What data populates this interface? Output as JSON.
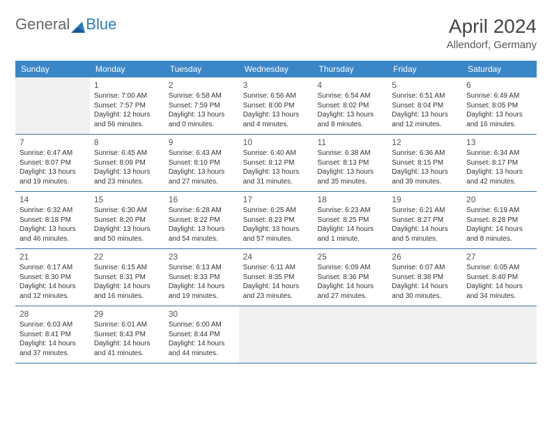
{
  "logo": {
    "text1": "General",
    "text2": "Blue"
  },
  "title": "April 2024",
  "location": "Allendorf, Germany",
  "colors": {
    "header_bg": "#3b86c7",
    "header_text": "#ffffff",
    "cell_border": "#3b6fa0",
    "empty_bg": "#f1f1f1",
    "logo_blue": "#2b7ac0"
  },
  "daynames": [
    "Sunday",
    "Monday",
    "Tuesday",
    "Wednesday",
    "Thursday",
    "Friday",
    "Saturday"
  ],
  "weeks": [
    [
      {
        "empty": true
      },
      {
        "num": "1",
        "sunrise": "7:00 AM",
        "sunset": "7:57 PM",
        "daylight": "12 hours and 56 minutes."
      },
      {
        "num": "2",
        "sunrise": "6:58 AM",
        "sunset": "7:59 PM",
        "daylight": "13 hours and 0 minutes."
      },
      {
        "num": "3",
        "sunrise": "6:56 AM",
        "sunset": "8:00 PM",
        "daylight": "13 hours and 4 minutes."
      },
      {
        "num": "4",
        "sunrise": "6:54 AM",
        "sunset": "8:02 PM",
        "daylight": "13 hours and 8 minutes."
      },
      {
        "num": "5",
        "sunrise": "6:51 AM",
        "sunset": "8:04 PM",
        "daylight": "13 hours and 12 minutes."
      },
      {
        "num": "6",
        "sunrise": "6:49 AM",
        "sunset": "8:05 PM",
        "daylight": "13 hours and 16 minutes."
      }
    ],
    [
      {
        "num": "7",
        "sunrise": "6:47 AM",
        "sunset": "8:07 PM",
        "daylight": "13 hours and 19 minutes."
      },
      {
        "num": "8",
        "sunrise": "6:45 AM",
        "sunset": "8:09 PM",
        "daylight": "13 hours and 23 minutes."
      },
      {
        "num": "9",
        "sunrise": "6:43 AM",
        "sunset": "8:10 PM",
        "daylight": "13 hours and 27 minutes."
      },
      {
        "num": "10",
        "sunrise": "6:40 AM",
        "sunset": "8:12 PM",
        "daylight": "13 hours and 31 minutes."
      },
      {
        "num": "11",
        "sunrise": "6:38 AM",
        "sunset": "8:13 PM",
        "daylight": "13 hours and 35 minutes."
      },
      {
        "num": "12",
        "sunrise": "6:36 AM",
        "sunset": "8:15 PM",
        "daylight": "13 hours and 39 minutes."
      },
      {
        "num": "13",
        "sunrise": "6:34 AM",
        "sunset": "8:17 PM",
        "daylight": "13 hours and 42 minutes."
      }
    ],
    [
      {
        "num": "14",
        "sunrise": "6:32 AM",
        "sunset": "8:18 PM",
        "daylight": "13 hours and 46 minutes."
      },
      {
        "num": "15",
        "sunrise": "6:30 AM",
        "sunset": "8:20 PM",
        "daylight": "13 hours and 50 minutes."
      },
      {
        "num": "16",
        "sunrise": "6:28 AM",
        "sunset": "8:22 PM",
        "daylight": "13 hours and 54 minutes."
      },
      {
        "num": "17",
        "sunrise": "6:25 AM",
        "sunset": "8:23 PM",
        "daylight": "13 hours and 57 minutes."
      },
      {
        "num": "18",
        "sunrise": "6:23 AM",
        "sunset": "8:25 PM",
        "daylight": "14 hours and 1 minute."
      },
      {
        "num": "19",
        "sunrise": "6:21 AM",
        "sunset": "8:27 PM",
        "daylight": "14 hours and 5 minutes."
      },
      {
        "num": "20",
        "sunrise": "6:19 AM",
        "sunset": "8:28 PM",
        "daylight": "14 hours and 8 minutes."
      }
    ],
    [
      {
        "num": "21",
        "sunrise": "6:17 AM",
        "sunset": "8:30 PM",
        "daylight": "14 hours and 12 minutes."
      },
      {
        "num": "22",
        "sunrise": "6:15 AM",
        "sunset": "8:31 PM",
        "daylight": "14 hours and 16 minutes."
      },
      {
        "num": "23",
        "sunrise": "6:13 AM",
        "sunset": "8:33 PM",
        "daylight": "14 hours and 19 minutes."
      },
      {
        "num": "24",
        "sunrise": "6:11 AM",
        "sunset": "8:35 PM",
        "daylight": "14 hours and 23 minutes."
      },
      {
        "num": "25",
        "sunrise": "6:09 AM",
        "sunset": "8:36 PM",
        "daylight": "14 hours and 27 minutes."
      },
      {
        "num": "26",
        "sunrise": "6:07 AM",
        "sunset": "8:38 PM",
        "daylight": "14 hours and 30 minutes."
      },
      {
        "num": "27",
        "sunrise": "6:05 AM",
        "sunset": "8:40 PM",
        "daylight": "14 hours and 34 minutes."
      }
    ],
    [
      {
        "num": "28",
        "sunrise": "6:03 AM",
        "sunset": "8:41 PM",
        "daylight": "14 hours and 37 minutes."
      },
      {
        "num": "29",
        "sunrise": "6:01 AM",
        "sunset": "8:43 PM",
        "daylight": "14 hours and 41 minutes."
      },
      {
        "num": "30",
        "sunrise": "6:00 AM",
        "sunset": "8:44 PM",
        "daylight": "14 hours and 44 minutes."
      },
      {
        "empty": true
      },
      {
        "empty": true
      },
      {
        "empty": true
      },
      {
        "empty": true
      }
    ]
  ],
  "labels": {
    "sunrise": "Sunrise: ",
    "sunset": "Sunset: ",
    "daylight": "Daylight: "
  }
}
